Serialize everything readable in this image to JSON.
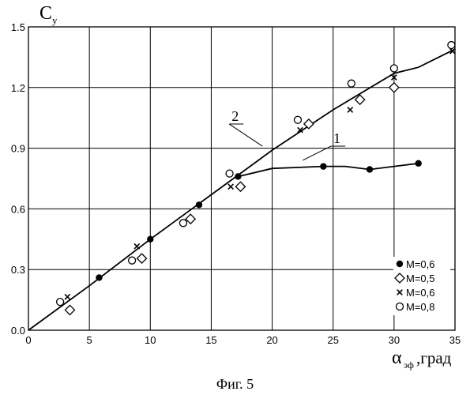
{
  "chart_data": {
    "type": "scatter",
    "title": "",
    "ylabel": "C",
    "ylabel_sub": "y",
    "xlabel": "α",
    "xlabel_sub": "эф",
    "xlabel_unit": ",град",
    "xlim": [
      0,
      35
    ],
    "ylim": [
      0,
      1.5
    ],
    "grid": true,
    "x_ticks": [
      "0",
      "5",
      "10",
      "15",
      "20",
      "25",
      "30",
      "35"
    ],
    "y_ticks": [
      "0.0",
      "0.3",
      "0.6",
      "0.9",
      "1.2",
      "1.5"
    ],
    "legend_position": "bottom-right",
    "series": [
      {
        "name": "M=0,6",
        "marker": "filled-circle",
        "x": [
          5.8,
          10.0,
          14.0,
          17.2,
          24.2,
          28.0,
          32.0
        ],
        "y": [
          0.26,
          0.45,
          0.62,
          0.76,
          0.81,
          0.795,
          0.825
        ]
      },
      {
        "name": "M=0,5",
        "marker": "diamond",
        "x": [
          3.4,
          9.3,
          13.3,
          17.4,
          23.0,
          27.2,
          30.0
        ],
        "y": [
          0.1,
          0.355,
          0.55,
          0.71,
          1.02,
          1.14,
          1.2
        ]
      },
      {
        "name": "M=0,6",
        "marker": "cross",
        "x": [
          3.2,
          8.9,
          16.6,
          22.3,
          26.4,
          30.0,
          34.8
        ],
        "y": [
          0.165,
          0.415,
          0.71,
          0.99,
          1.09,
          1.25,
          1.38
        ]
      },
      {
        "name": "M=0,8",
        "marker": "open-circle",
        "x": [
          2.6,
          8.5,
          12.7,
          16.5,
          22.1,
          26.5,
          30.0,
          34.7
        ],
        "y": [
          0.14,
          0.345,
          0.53,
          0.775,
          1.04,
          1.22,
          1.295,
          1.41
        ]
      }
    ],
    "curves": [
      {
        "label": "1",
        "x": [
          17.2,
          20.0,
          24.2,
          26.0,
          28.0,
          32.0
        ],
        "y": [
          0.76,
          0.8,
          0.81,
          0.81,
          0.795,
          0.825
        ]
      },
      {
        "label": "2",
        "x": [
          0,
          5.0,
          10.0,
          15.0,
          20.0,
          25.0,
          30.0,
          32.0,
          35.0
        ],
        "y": [
          0,
          0.22,
          0.45,
          0.67,
          0.89,
          1.09,
          1.27,
          1.3,
          1.39
        ]
      }
    ],
    "curve_label_anchors": [
      {
        "label": "1",
        "x": 22.5,
        "y": 0.84
      },
      {
        "label": "2",
        "x": 19.2,
        "y": 0.91
      }
    ]
  },
  "caption": "Фиг. 5"
}
